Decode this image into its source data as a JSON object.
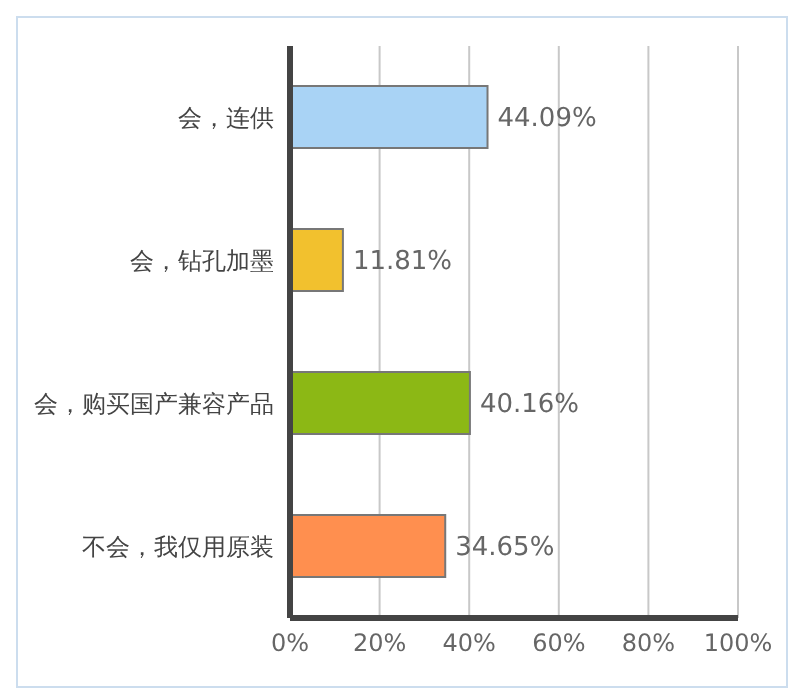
{
  "chart_data": {
    "type": "bar",
    "orientation": "horizontal",
    "categories": [
      "会，连供",
      "会，钻孔加墨",
      "会，购买国产兼容产品",
      "不会，我仅用原装"
    ],
    "values": [
      44.09,
      11.81,
      40.16,
      34.65
    ],
    "colors": [
      "#a9d3f5",
      "#f2c12e",
      "#8cb815",
      "#ff8f4f"
    ],
    "value_labels": [
      "44.09%",
      "11.81%",
      "40.16%",
      "34.65%"
    ],
    "xlim": [
      0,
      100
    ],
    "xticks": [
      {
        "value": 0,
        "label": "0%"
      },
      {
        "value": 20,
        "label": "20%"
      },
      {
        "value": 40,
        "label": "40%"
      },
      {
        "value": 60,
        "label": "60%"
      },
      {
        "value": 80,
        "label": "80%"
      },
      {
        "value": 100,
        "label": "100%"
      }
    ],
    "grid": "x"
  }
}
